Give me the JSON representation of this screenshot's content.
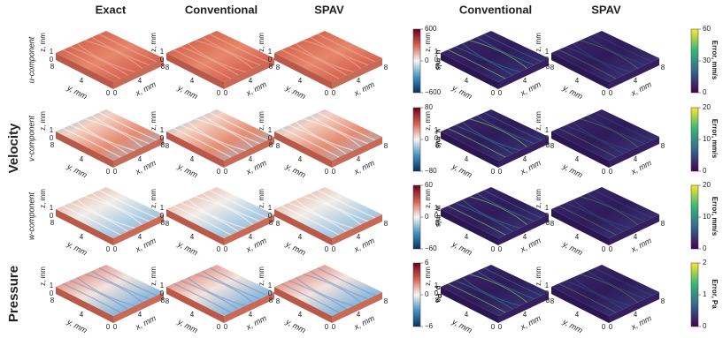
{
  "columns": [
    {
      "title": "Exact"
    },
    {
      "title": "Conventional"
    },
    {
      "title": "SPAV"
    },
    {
      "title": "Conventional"
    },
    {
      "title": "SPAV"
    }
  ],
  "groups": [
    {
      "label": "Velocity"
    },
    {
      "label": "Pressure"
    }
  ],
  "rows": [
    {
      "label": "u-component",
      "colorbar": {
        "label": "u, m/s",
        "ticks": [
          "600",
          "0",
          "−600"
        ]
      },
      "error_colorbar": {
        "label": "Error, mm/s",
        "ticks": [
          "60",
          "30",
          "0"
        ]
      }
    },
    {
      "label": "v-component",
      "colorbar": {
        "label": "v, m/s",
        "ticks": [
          "80",
          "0",
          "−80"
        ]
      },
      "error_colorbar": {
        "label": "Error, mm/s",
        "ticks": [
          "20",
          "10",
          "0"
        ]
      }
    },
    {
      "label": "w-component",
      "colorbar": {
        "label": "w, m/s",
        "ticks": [
          "60",
          "0",
          "−60"
        ]
      },
      "error_colorbar": {
        "label": "Error, mm/s",
        "ticks": [
          "20",
          "10",
          "0"
        ]
      }
    },
    {
      "colorbar": {
        "label": "p, Pa",
        "ticks": [
          "6",
          "0",
          "−6"
        ]
      },
      "error_colorbar": {
        "label": "Error, Pa",
        "ticks": [
          "2",
          "1",
          "0"
        ]
      }
    }
  ],
  "axes": {
    "z_label": "z, mm",
    "y_label": "y, mm",
    "x_label": "x, mm",
    "z_ticks": [
      "1",
      "0"
    ],
    "y_ticks": [
      "8",
      "4",
      "0"
    ],
    "x_ticks": [
      "0",
      "4",
      "8"
    ]
  }
}
